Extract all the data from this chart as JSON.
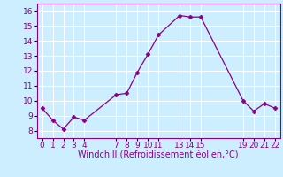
{
  "x": [
    0,
    1,
    2,
    3,
    4,
    7,
    8,
    9,
    10,
    11,
    13,
    14,
    15,
    19,
    20,
    21,
    22
  ],
  "y": [
    9.5,
    8.7,
    8.1,
    8.9,
    8.7,
    10.4,
    10.5,
    11.9,
    13.1,
    14.4,
    15.7,
    15.6,
    15.6,
    10.0,
    9.3,
    9.8,
    9.5
  ],
  "line_color": "#880088",
  "marker": "D",
  "marker_size": 2.5,
  "bg_color": "#cceeff",
  "grid_color": "#ffffff",
  "xlabel": "Windchill (Refroidissement éolien,°C)",
  "xlabel_color": "#880088",
  "xlabel_fontsize": 7,
  "tick_color": "#880088",
  "tick_fontsize": 6.5,
  "yticks": [
    8,
    9,
    10,
    11,
    12,
    13,
    14,
    15,
    16
  ],
  "ylim": [
    7.5,
    16.5
  ],
  "xlim": [
    -0.5,
    22.5
  ]
}
